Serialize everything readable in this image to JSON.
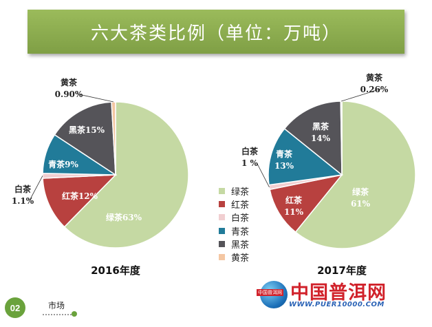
{
  "banner": {
    "title": "六大茶类比例（单位：万吨）"
  },
  "legend": {
    "items": [
      {
        "label": "绿茶",
        "color": "#c5d9a3"
      },
      {
        "label": "红茶",
        "color": "#b8413f"
      },
      {
        "label": "白茶",
        "color": "#f1cfd1"
      },
      {
        "label": "青茶",
        "color": "#217b99"
      },
      {
        "label": "黑茶",
        "color": "#555459"
      },
      {
        "label": "黄茶",
        "color": "#f4c7a3"
      }
    ]
  },
  "chart_data": [
    {
      "type": "pie",
      "title": "2016年度",
      "categories": [
        "绿茶",
        "红茶",
        "白茶",
        "青茶",
        "黑茶",
        "黄茶"
      ],
      "values": [
        63,
        12,
        1.1,
        9,
        15,
        0.9
      ],
      "data_labels": [
        "绿茶63%",
        "红茶12%",
        "白茶\n1.1%",
        "青茶9%",
        "黑茶15%",
        "黄茶\n0.90%"
      ]
    },
    {
      "type": "pie",
      "title": "2017年度",
      "categories": [
        "绿茶",
        "红茶",
        "白茶",
        "青茶",
        "黑茶",
        "黄茶"
      ],
      "values": [
        61,
        11,
        1,
        13,
        14,
        0.26
      ],
      "data_labels": [
        "绿茶\n61%",
        "红茶\n11%",
        "白茶\n1 %",
        "青茶\n13%",
        "黑茶\n14%",
        "黄茶\n0.26%"
      ]
    }
  ],
  "footer": {
    "number": "02",
    "text": "市场"
  },
  "watermark": {
    "tag": "中国普洱网",
    "title": "中国普洱网",
    "url": "WWW.PUER10000.COM"
  }
}
